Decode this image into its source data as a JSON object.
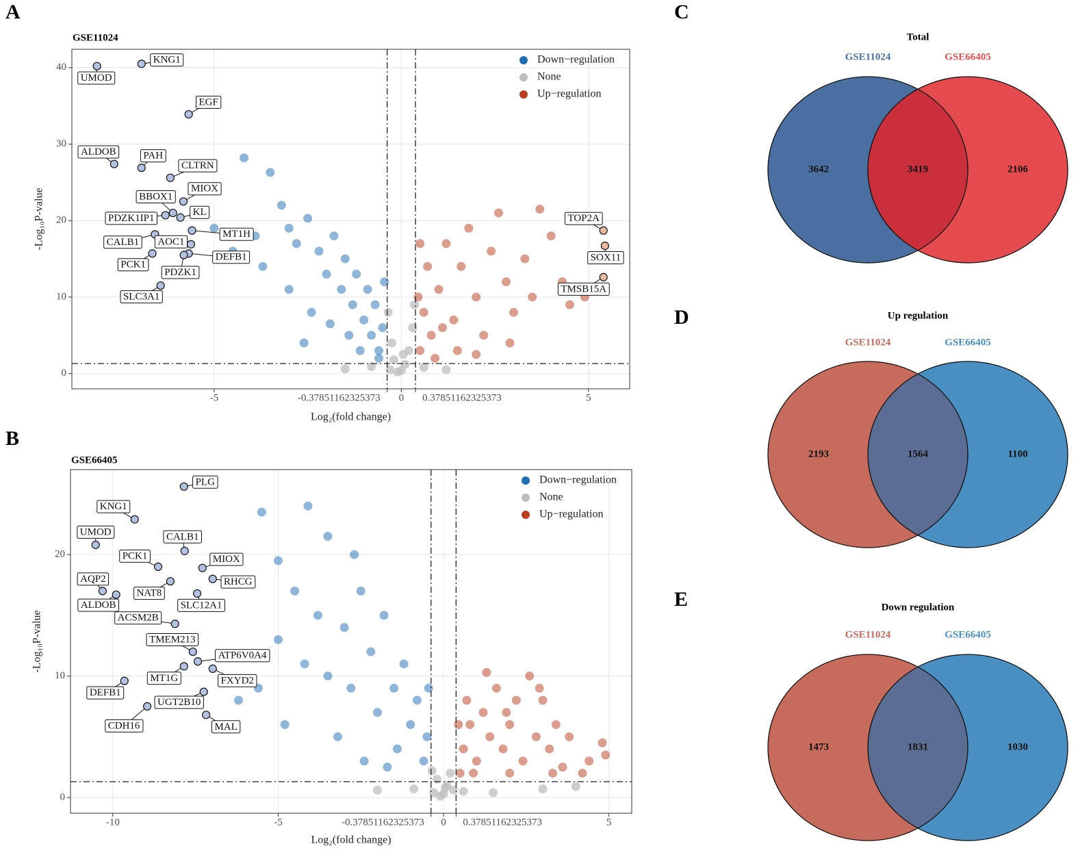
{
  "chart_data": [
    {
      "type": "scatter",
      "panel": "A",
      "title": "GSE11024",
      "xlabel": "Log₂(fold change)",
      "ylabel": "-Log₁₀P-value",
      "xlim": [
        -8.8,
        6.1
      ],
      "ylim": [
        -2,
        42.4
      ],
      "xticks": [
        -5,
        -0.37851162325373,
        0,
        0.37851162325373,
        5
      ],
      "yticks": [
        0,
        10,
        20,
        30,
        40
      ],
      "grid": true,
      "legend": "top-right",
      "thresholds": {
        "x": [
          -0.37851162325373,
          0.37851162325373
        ],
        "y": 1.3
      },
      "series": [
        {
          "name": "Down−regulation",
          "color": "#1f6db4",
          "x": [
            -4.2,
            -3.5,
            -3.2,
            -3.0,
            -2.8,
            -2.5,
            -2.2,
            -2.0,
            -1.8,
            -1.6,
            -1.5,
            -1.3,
            -1.2,
            -1.0,
            -0.9,
            -0.8,
            -0.7,
            -0.6,
            -0.5,
            -0.45,
            -1.1,
            -1.4,
            -2.4,
            -3.0,
            -3.7,
            -4.5,
            -5.0,
            -2.6,
            -1.9,
            -0.6,
            -3.9
          ],
          "values": [
            28.2,
            26.3,
            22,
            19,
            17,
            20.3,
            16,
            13,
            18,
            11,
            15,
            9,
            13,
            7,
            11,
            5,
            9,
            3,
            6,
            12,
            3,
            5,
            8,
            11,
            14,
            16,
            19,
            4,
            6.5,
            2,
            18
          ]
        },
        {
          "name": "None",
          "color": "#bdbdbd",
          "x": [
            -0.3,
            -0.2,
            -0.1,
            0,
            0.1,
            0.2,
            0.3,
            -0.25,
            0.35,
            -0.35,
            0.6,
            -0.8,
            1.2,
            -1.5,
            0.05
          ],
          "values": [
            0.5,
            1.8,
            0.2,
            0.4,
            1.2,
            3,
            6,
            4,
            9,
            8,
            0.8,
            0.9,
            0.5,
            0.6,
            2.5
          ]
        },
        {
          "name": "Up−regulation",
          "color": "#b83c1e",
          "x": [
            0.5,
            0.6,
            0.7,
            0.8,
            1.0,
            1.2,
            1.4,
            1.6,
            1.8,
            2.0,
            2.2,
            2.4,
            2.6,
            2.8,
            3.0,
            3.3,
            3.5,
            3.7,
            4.0,
            4.3,
            4.6,
            4.9,
            0.45,
            0.9,
            1.5,
            2.0,
            0.5,
            1.1,
            2.9,
            4.5
          ],
          "values": [
            3,
            8,
            14,
            5,
            11,
            17,
            7,
            14,
            19,
            10,
            5,
            16,
            21,
            12,
            8,
            15,
            10,
            21.5,
            18,
            12,
            11,
            10,
            10,
            2,
            3,
            2.5,
            17,
            6,
            4,
            9
          ]
        }
      ],
      "highlights": [
        {
          "color": "#b3c0e0",
          "names": [
            "UMOD",
            "KNG1",
            "EGF",
            "ALDOB",
            "PAH",
            "CLTRN",
            "MIOX",
            "BBOX1",
            "PDZK1IP1",
            "KL",
            "MT1H",
            "CALB1",
            "AOC1",
            "DEFB1",
            "PCK1",
            "PDZK1",
            "SLC3A1"
          ],
          "x": [
            -8.13,
            -6.94,
            -5.68,
            -7.67,
            -6.94,
            -6.17,
            -5.82,
            -6.1,
            -6.3,
            -5.9,
            -5.59,
            -6.58,
            -5.62,
            -5.68,
            -6.65,
            -5.81,
            -6.43
          ],
          "values": [
            40.2,
            40.5,
            33.9,
            27.4,
            26.9,
            25.6,
            22.5,
            21.0,
            20.7,
            20.4,
            18.7,
            18.2,
            16.9,
            15.7,
            15.7,
            15.5,
            11.5
          ]
        },
        {
          "color": "#ebb99d",
          "names": [
            "TOP2A",
            "SOX11",
            "TMSB15A"
          ],
          "x": [
            5.4,
            5.44,
            5.4
          ],
          "values": [
            18.7,
            16.7,
            12.6
          ]
        }
      ]
    },
    {
      "type": "scatter",
      "panel": "B",
      "title": "GSE66405",
      "xlabel": "Log₂(fold change)",
      "ylabel": "-Log₁₀P-value",
      "xlim": [
        -11.28,
        5.69
      ],
      "ylim": [
        -1.3,
        27
      ],
      "xticks": [
        -10,
        -5,
        -0.37851162325373,
        0,
        0.37851162325373,
        5
      ],
      "yticks": [
        0,
        10,
        20
      ],
      "grid": true,
      "legend": "top-right",
      "thresholds": {
        "x": [
          -0.37851162325373,
          0.37851162325373
        ],
        "y": 1.3
      },
      "series": [
        {
          "name": "Down−regulation",
          "color": "#1f6db4",
          "x": [
            -5.5,
            -4.1,
            -3.5,
            -2.7,
            -5.0,
            -4.5,
            -3.8,
            -3.0,
            -2.5,
            -2.2,
            -1.8,
            -1.5,
            -1.2,
            -1.0,
            -0.8,
            -0.6,
            -0.5,
            -0.45,
            -1.4,
            -2.0,
            -2.8,
            -3.5,
            -4.2,
            -5.0,
            -5.6,
            -4.8,
            -3.2,
            -1.7,
            -6.2,
            -2.4
          ],
          "values": [
            23.5,
            24,
            21.5,
            20,
            19.5,
            17,
            15,
            14,
            17,
            12,
            15,
            9,
            11,
            6,
            8,
            3,
            5,
            9,
            4,
            7,
            9,
            10,
            11,
            13,
            9,
            6,
            5,
            2.5,
            8,
            3
          ]
        },
        {
          "name": "None",
          "color": "#bdbdbd",
          "x": [
            -0.3,
            -0.2,
            -0.1,
            0,
            0.1,
            0.2,
            0.3,
            -0.35,
            0.6,
            -0.9,
            1.5,
            -2,
            3,
            4,
            0.05
          ],
          "values": [
            0.4,
            1.5,
            0.1,
            0.3,
            1,
            2,
            0.6,
            2.2,
            0.5,
            0.7,
            0.4,
            0.6,
            0.7,
            0.9,
            0.8
          ]
        },
        {
          "name": "Up−regulation",
          "color": "#b83c1e",
          "x": [
            0.5,
            0.6,
            0.8,
            1.0,
            1.2,
            1.4,
            1.6,
            1.8,
            2.0,
            2.2,
            2.4,
            2.6,
            2.8,
            3.0,
            3.2,
            3.4,
            3.6,
            3.8,
            4.2,
            4.8,
            4.9,
            0.45,
            0.9,
            1.3,
            2.0,
            2.9,
            4.4,
            0.7,
            1.9,
            3.3
          ],
          "values": [
            2,
            4,
            6,
            3,
            7,
            5,
            9,
            4,
            6,
            8,
            3,
            10,
            5,
            8,
            4,
            6,
            2.5,
            5,
            2,
            4.5,
            3.5,
            6,
            2,
            10.3,
            2,
            9,
            3,
            8,
            7,
            2
          ]
        }
      ],
      "highlights": [
        {
          "color": "#b3c0e0",
          "names": [
            "PLG",
            "KNG1",
            "UMOD",
            "CALB1",
            "PCK1",
            "MIOX",
            "AQP2",
            "ALDOB",
            "NAT8",
            "RHCG",
            "SLC12A1",
            "ACSM2B",
            "TMEM213",
            "ATP6V0A4",
            "MT1G",
            "FXYD2",
            "DEFB1",
            "UGT2B10",
            "CDH16",
            "MAL"
          ],
          "x": [
            -7.85,
            -9.34,
            -10.52,
            -7.83,
            -8.63,
            -7.29,
            -10.31,
            -9.9,
            -8.26,
            -6.98,
            -7.45,
            -8.12,
            -7.58,
            -7.43,
            -7.85,
            -6.98,
            -9.65,
            -7.25,
            -8.96,
            -7.18
          ],
          "values": [
            25.6,
            22.9,
            20.8,
            20.3,
            19.0,
            18.9,
            17.0,
            16.7,
            17.8,
            18.0,
            16.8,
            14.3,
            12.0,
            11.2,
            10.8,
            10.6,
            9.6,
            8.7,
            7.5,
            6.8
          ]
        }
      ]
    },
    {
      "type": "venn",
      "panel": "C",
      "title": "Total",
      "sets": [
        {
          "name": "GSE11024",
          "color": "#4a6fa0"
        },
        {
          "name": "GSE66405",
          "color": "#e44b4e"
        }
      ],
      "overlap_color": "#c9303c",
      "values": [
        3642,
        3419,
        2106
      ]
    },
    {
      "type": "venn",
      "panel": "D",
      "title": "Up regulation",
      "sets": [
        {
          "name": "GSE11024",
          "color": "#c76b5d"
        },
        {
          "name": "GSE66405",
          "color": "#4a8fc2"
        }
      ],
      "overlap_color": "#5b6d93",
      "values": [
        2193,
        1564,
        1100
      ]
    },
    {
      "type": "venn",
      "panel": "E",
      "title": "Down regulation",
      "sets": [
        {
          "name": "GSE11024",
          "color": "#c76b5d"
        },
        {
          "name": "GSE66405",
          "color": "#4a8fc2"
        }
      ],
      "overlap_color": "#5b6d93",
      "values": [
        1473,
        1831,
        1030
      ]
    }
  ]
}
